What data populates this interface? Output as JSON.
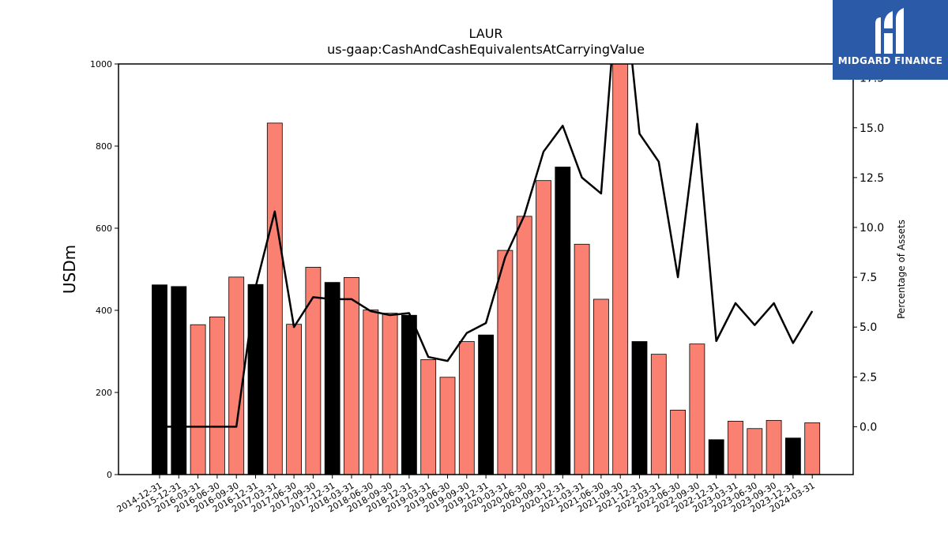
{
  "chart_data": {
    "type": "bar",
    "title": "LAUR",
    "subtitle": "us-gaap:CashAndCashEquivalentsAtCarryingValue",
    "ylabel": "USDm",
    "y2label": "Percentage of Assets",
    "ylim": [
      0,
      1000
    ],
    "y2lim": [
      -2.4,
      18.2
    ],
    "yticks": [
      "0",
      "200",
      "400",
      "600",
      "800",
      "1000"
    ],
    "y2ticks": [
      "0.0",
      "2.5",
      "5.0",
      "7.5",
      "10.0",
      "12.5",
      "15.0",
      "17.5"
    ],
    "categories": [
      "2014-12-31",
      "2015-12-31",
      "2016-03-31",
      "2016-06-30",
      "2016-09-30",
      "2016-12-31",
      "2017-03-31",
      "2017-06-30",
      "2017-09-30",
      "2017-12-31",
      "2018-03-31",
      "2018-06-30",
      "2018-09-30",
      "2018-12-31",
      "2019-03-31",
      "2019-06-30",
      "2019-09-30",
      "2019-12-31",
      "2020-03-31",
      "2020-06-30",
      "2020-09-30",
      "2020-12-31",
      "2021-03-31",
      "2021-06-30",
      "2021-09-30",
      "2021-12-31",
      "2022-03-31",
      "2022-06-30",
      "2022-09-30",
      "2022-12-31",
      "2023-03-31",
      "2023-06-30",
      "2023-09-30",
      "2023-12-31",
      "2024-03-31"
    ],
    "series": [
      {
        "type": "bar",
        "values": [
          462,
          458,
          365,
          384,
          481,
          463,
          856,
          366,
          505,
          468,
          480,
          401,
          393,
          388,
          280,
          237,
          324,
          340,
          546,
          629,
          716,
          749,
          561,
          427,
          1010,
          324,
          293,
          157,
          318,
          85,
          130,
          112,
          132,
          89,
          126
        ],
        "colors": [
          "#000000",
          "#000000",
          "#fa8072",
          "#fa8072",
          "#fa8072",
          "#000000",
          "#fa8072",
          "#fa8072",
          "#fa8072",
          "#000000",
          "#fa8072",
          "#fa8072",
          "#fa8072",
          "#000000",
          "#fa8072",
          "#fa8072",
          "#fa8072",
          "#000000",
          "#fa8072",
          "#fa8072",
          "#fa8072",
          "#000000",
          "#fa8072",
          "#fa8072",
          "#fa8072",
          "#000000",
          "#fa8072",
          "#fa8072",
          "#fa8072",
          "#000000",
          "#fa8072",
          "#fa8072",
          "#fa8072",
          "#000000",
          "#fa8072"
        ]
      },
      {
        "type": "line",
        "axis": "right",
        "color": "#000000",
        "values": [
          0.0,
          0.0,
          0.0,
          0.0,
          0.0,
          7.0,
          10.8,
          5.0,
          6.5,
          6.4,
          6.4,
          5.8,
          5.6,
          5.7,
          3.5,
          3.3,
          4.7,
          5.2,
          8.5,
          10.6,
          13.8,
          15.1,
          12.5,
          11.7,
          24.0,
          14.7,
          13.3,
          7.5,
          15.2,
          4.3,
          6.2,
          5.1,
          6.2,
          4.2,
          5.8
        ]
      }
    ]
  },
  "logo": {
    "text": "MIDGARD FINANCE",
    "color": "#2b5aa8"
  }
}
